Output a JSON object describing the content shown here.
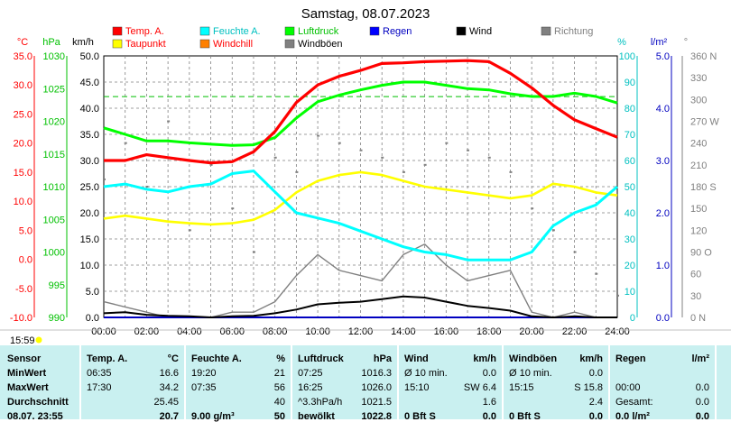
{
  "title": "Samstag, 08.07.2023",
  "colors": {
    "temp": "#ff0000",
    "humidity": "#00ffff",
    "pressure": "#00ff00",
    "dew": "#ffff00",
    "wind": "#000000",
    "gust": "#808080",
    "direction": "#808080",
    "rain": "#0000c0"
  },
  "axis_units": {
    "celsius": "°C",
    "hpa": "hPa",
    "kmh": "km/h",
    "pct": "%",
    "lm2": "l/m²",
    "deg": "°"
  },
  "legend": [
    {
      "name": "Temp. A.",
      "color": "#ff0000"
    },
    {
      "name": "Feuchte A.",
      "color": "#00ffff"
    },
    {
      "name": "Luftdruck",
      "color": "#00ff00"
    },
    {
      "name": "Regen",
      "color": "#0000ff"
    },
    {
      "name": "Wind",
      "color": "#000000"
    },
    {
      "name": "Richtung",
      "color": "#808080"
    },
    {
      "name": "Taupunkt",
      "color": "#ffff00"
    },
    {
      "name": "Windchill",
      "color": "#ff8000"
    },
    {
      "name": "Windböen",
      "color": "#808080"
    }
  ],
  "chart_data": {
    "type": "line",
    "title": "Samstag, 08.07.2023",
    "x_ticks": [
      "00:00",
      "02:00",
      "04:00",
      "06:00",
      "08:00",
      "10:00",
      "12:00",
      "14:00",
      "16:00",
      "18:00",
      "20:00",
      "22:00",
      "24:00"
    ],
    "axes": {
      "celsius": {
        "ticks": [
          "35.0",
          "30.0",
          "25.0",
          "20.0",
          "15.0",
          "10.0",
          "5.0",
          "0.0",
          "-5.0",
          "-10.0"
        ],
        "range": [
          -10,
          35
        ]
      },
      "hpa": {
        "ticks": [
          "1030",
          "1025",
          "1020",
          "1015",
          "1010",
          "1005",
          "1000",
          "995",
          "990"
        ],
        "range": [
          990,
          1030
        ]
      },
      "kmh": {
        "ticks": [
          "50.0",
          "45.0",
          "40.0",
          "35.0",
          "30.0",
          "25.0",
          "20.0",
          "15.0",
          "10.0",
          "5.0",
          "0.0"
        ],
        "range": [
          0,
          50
        ]
      },
      "pct": {
        "ticks": [
          "100",
          "90",
          "80",
          "70",
          "60",
          "50",
          "40",
          "30",
          "20",
          "10",
          "0"
        ],
        "range": [
          0,
          100
        ]
      },
      "lm2": {
        "ticks": [
          "5.0",
          "4.0",
          "3.0",
          "2.0",
          "1.0",
          "0.0"
        ],
        "range": [
          0,
          5
        ]
      },
      "deg": {
        "ticks": [
          "360 N",
          "330",
          "300",
          "270 W",
          "240",
          "210",
          "180 S",
          "150",
          "120",
          "90 O",
          "60",
          "30",
          "0  N"
        ],
        "range": [
          0,
          360
        ]
      }
    },
    "series": [
      {
        "name": "Temp. A.",
        "unit": "°C",
        "x": [
          0,
          1,
          2,
          3,
          4,
          5,
          6,
          7,
          8,
          9,
          10,
          11,
          12,
          13,
          14,
          15,
          16,
          17,
          18,
          19,
          20,
          21,
          22,
          23,
          24
        ],
        "y": [
          17.0,
          17.0,
          18.0,
          17.5,
          17.0,
          16.6,
          16.8,
          18.5,
          22.0,
          27.0,
          30.0,
          31.5,
          32.5,
          33.7,
          33.8,
          34.0,
          34.1,
          34.2,
          34.0,
          32.0,
          29.5,
          26.5,
          24.0,
          22.5,
          21.0
        ]
      },
      {
        "name": "Feuchte A.",
        "unit": "%",
        "x": [
          0,
          1,
          2,
          3,
          4,
          5,
          6,
          7,
          8,
          9,
          10,
          11,
          12,
          13,
          14,
          15,
          16,
          17,
          18,
          19,
          20,
          21,
          22,
          23,
          24
        ],
        "y": [
          50,
          51,
          49,
          48,
          50,
          51,
          55,
          56,
          48,
          40,
          38,
          36,
          33,
          30,
          27,
          25,
          24,
          22,
          22,
          22,
          25,
          35,
          40,
          43,
          50
        ]
      },
      {
        "name": "Luftdruck",
        "unit": "hPa",
        "x": [
          0,
          1,
          2,
          3,
          4,
          5,
          6,
          7,
          8,
          9,
          10,
          11,
          12,
          13,
          14,
          15,
          16,
          17,
          18,
          19,
          20,
          21,
          22,
          23,
          24
        ],
        "y": [
          1019.0,
          1018.0,
          1017.0,
          1017.0,
          1016.7,
          1016.5,
          1016.3,
          1016.4,
          1017.5,
          1020.5,
          1023.0,
          1024.0,
          1024.8,
          1025.5,
          1026.0,
          1026.0,
          1025.5,
          1025.0,
          1024.8,
          1024.2,
          1023.8,
          1023.8,
          1024.3,
          1023.8,
          1022.8
        ]
      },
      {
        "name": "Taupunkt",
        "unit": "°C",
        "x": [
          0,
          1,
          2,
          3,
          4,
          5,
          6,
          7,
          8,
          9,
          10,
          11,
          12,
          13,
          14,
          15,
          16,
          17,
          18,
          19,
          20,
          21,
          22,
          23,
          24
        ],
        "y": [
          7.0,
          7.5,
          7.0,
          6.5,
          6.2,
          6.0,
          6.2,
          6.8,
          8.5,
          11.5,
          13.5,
          14.5,
          15.0,
          14.5,
          13.5,
          12.5,
          12.0,
          11.5,
          11.0,
          10.5,
          11.0,
          13.0,
          12.5,
          11.5,
          11.0
        ]
      },
      {
        "name": "Wind",
        "unit": "km/h",
        "x": [
          0,
          1,
          2,
          3,
          4,
          5,
          6,
          7,
          8,
          9,
          10,
          11,
          12,
          13,
          14,
          15,
          16,
          17,
          18,
          19,
          20,
          21,
          22,
          23,
          24
        ],
        "y": [
          0.8,
          1.0,
          0.5,
          0.3,
          0.2,
          0.0,
          0.2,
          0.3,
          0.8,
          1.5,
          2.5,
          2.8,
          3.0,
          3.5,
          4.0,
          3.8,
          3.0,
          2.2,
          1.8,
          1.3,
          0.2,
          0.0,
          0.2,
          0.0,
          0.0
        ]
      },
      {
        "name": "Windböen",
        "unit": "km/h",
        "x": [
          0,
          1,
          2,
          3,
          4,
          5,
          6,
          7,
          8,
          9,
          10,
          11,
          12,
          13,
          14,
          15,
          16,
          17,
          18,
          19,
          20,
          21,
          22,
          23,
          24
        ],
        "y": [
          3,
          2,
          1,
          0,
          0,
          0,
          1,
          1,
          3,
          8,
          12,
          9,
          8,
          7,
          12,
          14,
          10,
          7,
          8,
          9,
          1,
          0,
          1,
          0,
          0
        ]
      },
      {
        "name": "Regen",
        "unit": "l/m²",
        "x": [
          0,
          24
        ],
        "y": [
          0.0,
          0.0
        ]
      },
      {
        "name": "Richtung",
        "unit": "°",
        "x": [
          0,
          1,
          2,
          3,
          4,
          5,
          6,
          7,
          8,
          9,
          10,
          11,
          12,
          13,
          14,
          15,
          16,
          17,
          18,
          19,
          20,
          21,
          22,
          23,
          24
        ],
        "y": [
          190,
          240,
          180,
          270,
          120,
          210,
          150,
          90,
          220,
          200,
          250,
          240,
          230,
          220,
          200,
          210,
          240,
          230,
          220,
          200,
          150,
          120,
          90,
          60,
          30
        ]
      }
    ],
    "reference_line": {
      "unit": "°C",
      "value": 28.0,
      "color": "#00c000",
      "style": "dashed"
    }
  },
  "time_labels": {
    "now": "15:59"
  },
  "table": {
    "rows": [
      "Sensor",
      "MinWert",
      "MaxWert",
      "Durchschnitt",
      "08.07. 23:55"
    ],
    "temp": {
      "header": "Temp. A.",
      "unit": "°C",
      "cells": [
        [
          "06:35",
          "16.6"
        ],
        [
          "17:30",
          "34.2"
        ],
        [
          "",
          "25.45"
        ],
        [
          "",
          "20.7"
        ]
      ]
    },
    "feuchte": {
      "header": "Feuchte A.",
      "unit": "%",
      "cells": [
        [
          "19:20",
          "21"
        ],
        [
          "07:35",
          "56"
        ],
        [
          "",
          "40"
        ],
        [
          "9.00 g/m³",
          "50"
        ]
      ]
    },
    "druck": {
      "header": "Luftdruck",
      "unit": "hPa",
      "cells": [
        [
          "07:25",
          "1016.3"
        ],
        [
          "16:25",
          "1026.0"
        ],
        [
          "^3.3hPa/h",
          "1021.5"
        ],
        [
          "bewölkt",
          "1022.8"
        ]
      ]
    },
    "wind": {
      "header": "Wind",
      "unit": "km/h",
      "cells": [
        [
          "Ø 10 min.",
          "0.0"
        ],
        [
          "15:10",
          "SW 6.4"
        ],
        [
          "",
          "1.6"
        ],
        [
          "0 Bft S",
          "0.0"
        ]
      ]
    },
    "boeen": {
      "header": "Windböen",
      "unit": "km/h",
      "cells": [
        [
          "Ø 10 min.",
          "0.0"
        ],
        [
          "15:15",
          "S 15.8"
        ],
        [
          "",
          "2.4"
        ],
        [
          "0 Bft S",
          "0.0"
        ]
      ]
    },
    "regen": {
      "header": "Regen",
      "unit": "l/m²",
      "cells": [
        [
          "",
          ""
        ],
        [
          "00:00",
          "0.0"
        ],
        [
          "Gesamt:",
          "0.0"
        ],
        [
          "0.0 l/m²",
          "0.0"
        ]
      ]
    }
  }
}
